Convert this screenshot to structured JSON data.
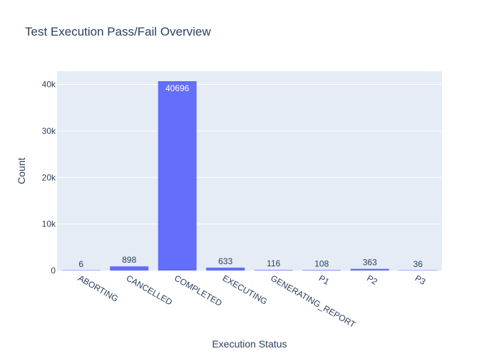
{
  "chart_data": {
    "type": "bar",
    "title": "Test Execution Pass/Fail Overview",
    "xlabel": "Execution Status",
    "ylabel": "Count",
    "categories": [
      "ABORTING",
      "CANCELLED",
      "COMPLETED",
      "EXECUTING",
      "GENERATING_REPORT",
      "P1",
      "P2",
      "P3"
    ],
    "values": [
      6,
      898,
      40696,
      633,
      116,
      108,
      363,
      36
    ],
    "value_labels": [
      "6",
      "898",
      "40696",
      "633",
      "116",
      "108",
      "363",
      "36"
    ],
    "ylim": [
      0,
      42838
    ],
    "yticks": [
      0,
      10000,
      20000,
      30000,
      40000
    ],
    "ytick_labels": [
      "0",
      "10k",
      "20k",
      "30k",
      "40k"
    ],
    "grid": true,
    "legend": "none",
    "colors": {
      "bar": "#636efa",
      "plot_background": "#e5ecf6",
      "gridline": "#ffffff",
      "text": "#2a3f5f",
      "inside_label": "#ffffff"
    }
  }
}
